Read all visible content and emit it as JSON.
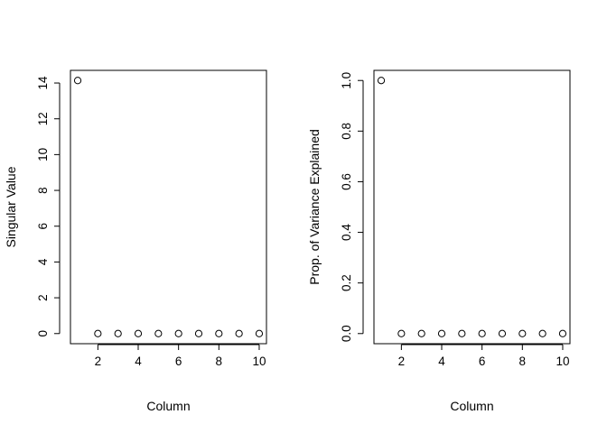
{
  "chart_data": [
    {
      "type": "scatter",
      "title": "",
      "xlabel": "Column",
      "ylabel": "Singular Value",
      "x": [
        1,
        2,
        3,
        4,
        5,
        6,
        7,
        8,
        9,
        10
      ],
      "y": [
        14.14,
        0,
        0,
        0,
        0,
        0,
        0,
        0,
        0,
        0
      ],
      "xlim": [
        0.64,
        10.36
      ],
      "ylim": [
        -0.566,
        14.707
      ],
      "xticks": [
        2,
        4,
        6,
        8,
        10
      ],
      "yticks": [
        0,
        2,
        4,
        6,
        8,
        10,
        12,
        14
      ],
      "grid": false,
      "marker": "open-circle"
    },
    {
      "type": "scatter",
      "title": "",
      "xlabel": "Column",
      "ylabel": "Prop. of Variance Explained",
      "x": [
        1,
        2,
        3,
        4,
        5,
        6,
        7,
        8,
        9,
        10
      ],
      "y": [
        1.0,
        0,
        0,
        0,
        0,
        0,
        0,
        0,
        0,
        0
      ],
      "xlim": [
        0.64,
        10.36
      ],
      "ylim": [
        -0.04,
        1.04
      ],
      "xticks": [
        2,
        4,
        6,
        8,
        10
      ],
      "yticks": [
        "0.0",
        "0.2",
        "0.4",
        "0.6",
        "0.8",
        "1.0"
      ],
      "grid": false,
      "marker": "open-circle"
    }
  ]
}
